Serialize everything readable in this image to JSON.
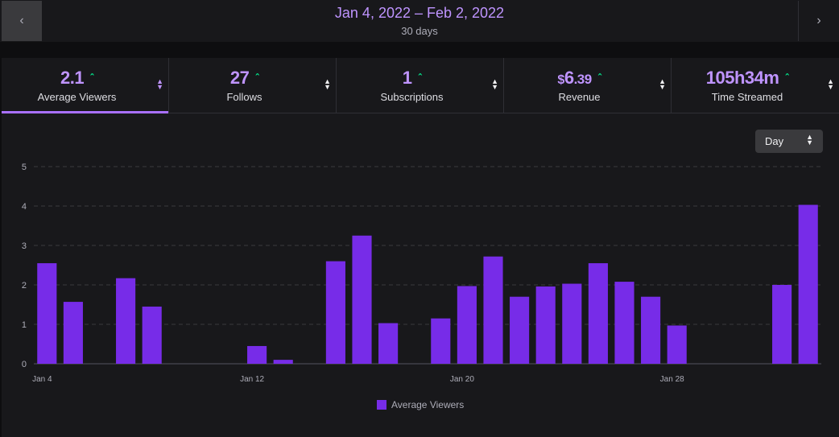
{
  "header": {
    "prev_icon": "chevron-left-icon",
    "next_icon": "chevron-right-icon",
    "date_range": "Jan 4, 2022 – Feb 2, 2022",
    "period": "30 days"
  },
  "metrics": [
    {
      "value": "2.1",
      "label": "Average Viewers",
      "active": true
    },
    {
      "value": "27",
      "label": "Follows",
      "active": false
    },
    {
      "value": "1",
      "label": "Subscriptions",
      "active": false
    },
    {
      "value_currency": "$",
      "value_main": "6",
      "value_cents": ".39",
      "label": "Revenue",
      "active": false
    },
    {
      "value": "105h34m",
      "label": "Time Streamed",
      "active": false
    }
  ],
  "granularity": {
    "selected": "Day"
  },
  "colors": {
    "accent": "#a970ff",
    "bar": "#772ce8",
    "up": "#00f593",
    "label": "#bf94ff"
  },
  "chart_data": {
    "type": "bar",
    "categories": [
      "Jan 4",
      "Jan 5",
      "Jan 6",
      "Jan 7",
      "Jan 8",
      "Jan 9",
      "Jan 10",
      "Jan 11",
      "Jan 12",
      "Jan 13",
      "Jan 14",
      "Jan 15",
      "Jan 16",
      "Jan 17",
      "Jan 18",
      "Jan 19",
      "Jan 20",
      "Jan 21",
      "Jan 22",
      "Jan 23",
      "Jan 24",
      "Jan 25",
      "Jan 26",
      "Jan 27",
      "Jan 28",
      "Jan 29",
      "Jan 30",
      "Jan 31",
      "Feb 1",
      "Feb 2"
    ],
    "x_tick_labels": [
      "Jan 4",
      "Jan 12",
      "Jan 20",
      "Jan 28"
    ],
    "series": [
      {
        "name": "Average Viewers",
        "values": [
          2.55,
          1.57,
          0,
          2.17,
          1.45,
          0,
          0,
          0,
          0.45,
          0.1,
          0,
          2.6,
          3.25,
          1.03,
          0,
          1.15,
          1.97,
          2.72,
          1.7,
          1.96,
          2.03,
          2.55,
          2.08,
          1.7,
          0.97,
          0,
          0,
          0,
          2.0,
          4.03
        ]
      }
    ],
    "ylim": [
      0,
      5
    ],
    "yticks": [
      0,
      1,
      2,
      3,
      4,
      5
    ],
    "grid": true,
    "legend_position": "bottom"
  }
}
